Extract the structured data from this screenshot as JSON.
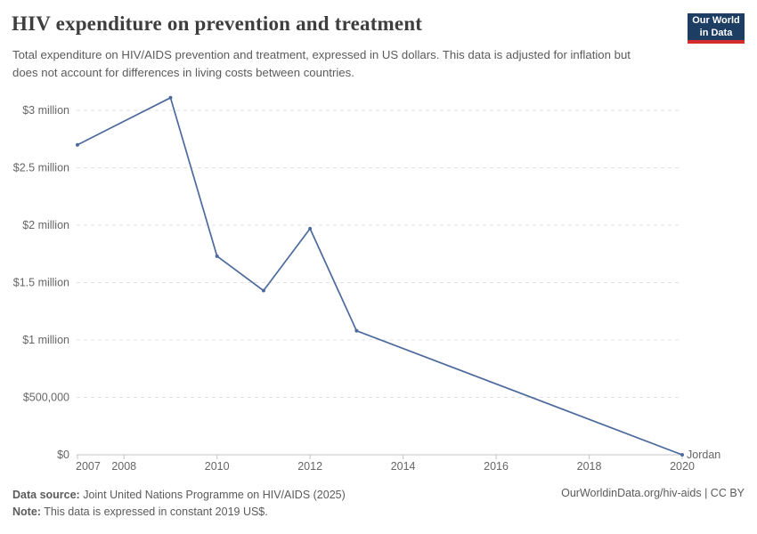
{
  "header": {
    "title": "HIV expenditure on prevention and treatment",
    "subtitle": "Total expenditure on HIV/AIDS prevention and treatment, expressed in US dollars. This data is adjusted for inflation but does not account for differences in living costs between countries.",
    "logo": {
      "line1": "Our World",
      "line2": "in Data"
    }
  },
  "chart_data": {
    "type": "line",
    "title": "HIV expenditure on prevention and treatment",
    "xlabel": "",
    "ylabel": "",
    "xlim": [
      2007,
      2020
    ],
    "ylim": [
      0,
      3000000
    ],
    "grid": "horizontal-dashed",
    "legend_position": "end-of-line-label",
    "x_ticks": [
      2007,
      2008,
      2010,
      2012,
      2014,
      2016,
      2018,
      2020
    ],
    "y_ticks": [
      {
        "value": 0,
        "label": "$0"
      },
      {
        "value": 500000,
        "label": "$500,000"
      },
      {
        "value": 1000000,
        "label": "$1 million"
      },
      {
        "value": 1500000,
        "label": "$1.5 million"
      },
      {
        "value": 2000000,
        "label": "$2 million"
      },
      {
        "value": 2500000,
        "label": "$2.5 million"
      },
      {
        "value": 3000000,
        "label": "$3 million"
      }
    ],
    "series": [
      {
        "name": "Jordan",
        "color": "#4C6A9C",
        "points": [
          {
            "x": 2007,
            "y": 2700000
          },
          {
            "x": 2009,
            "y": 3110000
          },
          {
            "x": 2010,
            "y": 1730000
          },
          {
            "x": 2011,
            "y": 1430000
          },
          {
            "x": 2012,
            "y": 1970000
          },
          {
            "x": 2013,
            "y": 1080000
          },
          {
            "x": 2020,
            "y": 0
          }
        ]
      }
    ],
    "end_label": "Jordan"
  },
  "footer": {
    "datasource_label": "Data source:",
    "datasource_text": " Joint United Nations Programme on HIV/AIDS (2025)",
    "note_label": "Note:",
    "note_text": " This data is expressed in constant 2019 US$.",
    "link_text": "OurWorldinData.org/hiv-aids | CC BY"
  },
  "colors": {
    "accent": "#4C6A9C",
    "logo_navy": "#1d3d63",
    "logo_red": "#d42b2b",
    "gridline": "#e2e2e2",
    "axis": "#c4c4c4",
    "tick_label": "#666666"
  }
}
